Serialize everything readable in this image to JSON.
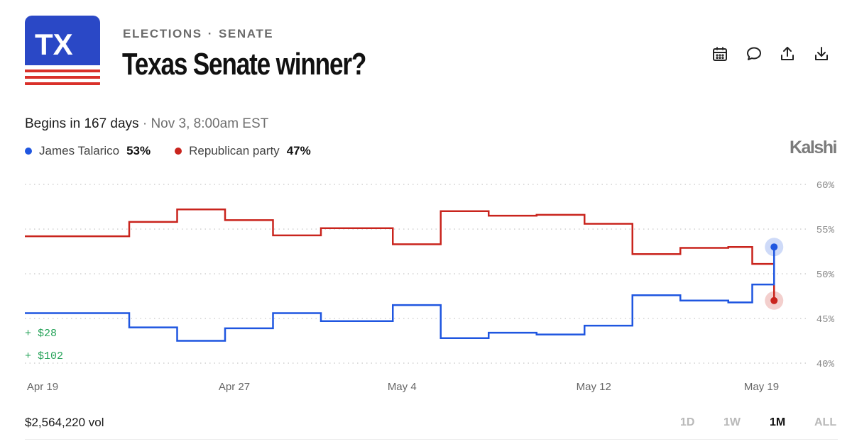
{
  "header": {
    "logo_text": "TX",
    "breadcrumb": [
      "ELECTIONS",
      "SENATE"
    ],
    "breadcrumb_separator": "·",
    "title": "Texas Senate winner?"
  },
  "toolbar": {
    "icons": [
      "calendar-icon",
      "comment-icon",
      "share-icon",
      "download-icon"
    ]
  },
  "status": {
    "begins": "Begins in 167 days",
    "separator": "·",
    "date": "Nov 3, 8:00am EST"
  },
  "legend": [
    {
      "name": "James Talarico",
      "value": "53%",
      "color": "#1f56e0"
    },
    {
      "name": "Republican party",
      "value": "47%",
      "color": "#c9241d"
    }
  ],
  "brand": "Kalshi",
  "chart_data": {
    "type": "line",
    "x_ticks": [
      "Apr 19",
      "Apr 27",
      "May 4",
      "May 12",
      "May 19"
    ],
    "y_ticks": [
      "60%",
      "55%",
      "50%",
      "45%",
      "40%"
    ],
    "ylim": [
      40,
      60
    ],
    "xlim": [
      "Apr 19",
      "May 20"
    ],
    "grid": true,
    "step": true,
    "series": [
      {
        "name": "Republican party",
        "color": "#c9241d",
        "x": [
          "Apr 19",
          "Apr 23",
          "Apr 25",
          "Apr 27",
          "Apr 29",
          "May 1",
          "May 4",
          "May 6",
          "May 8",
          "May 10",
          "May 12",
          "May 14",
          "May 16",
          "May 18",
          "May 19",
          "May 20"
        ],
        "values": [
          54.2,
          55.8,
          57.2,
          56.0,
          54.3,
          55.1,
          53.3,
          57.0,
          56.5,
          56.6,
          55.6,
          52.2,
          52.9,
          53.0,
          51.1,
          47.0
        ]
      },
      {
        "name": "James Talarico",
        "color": "#1f56e0",
        "x": [
          "Apr 19",
          "Apr 23",
          "Apr 25",
          "Apr 27",
          "Apr 29",
          "May 1",
          "May 4",
          "May 6",
          "May 8",
          "May 10",
          "May 12",
          "May 14",
          "May 16",
          "May 18",
          "May 19",
          "May 20"
        ],
        "values": [
          45.6,
          44.0,
          42.5,
          43.9,
          45.6,
          44.7,
          46.5,
          42.8,
          43.4,
          43.2,
          44.2,
          47.6,
          47.0,
          46.8,
          48.8,
          53.0
        ]
      }
    ],
    "trades": [
      "+ $28",
      "+ $102"
    ]
  },
  "footer": {
    "volume": "$2,564,220 vol",
    "ranges": [
      "1D",
      "1W",
      "1M",
      "ALL"
    ],
    "active_range": "1M"
  }
}
